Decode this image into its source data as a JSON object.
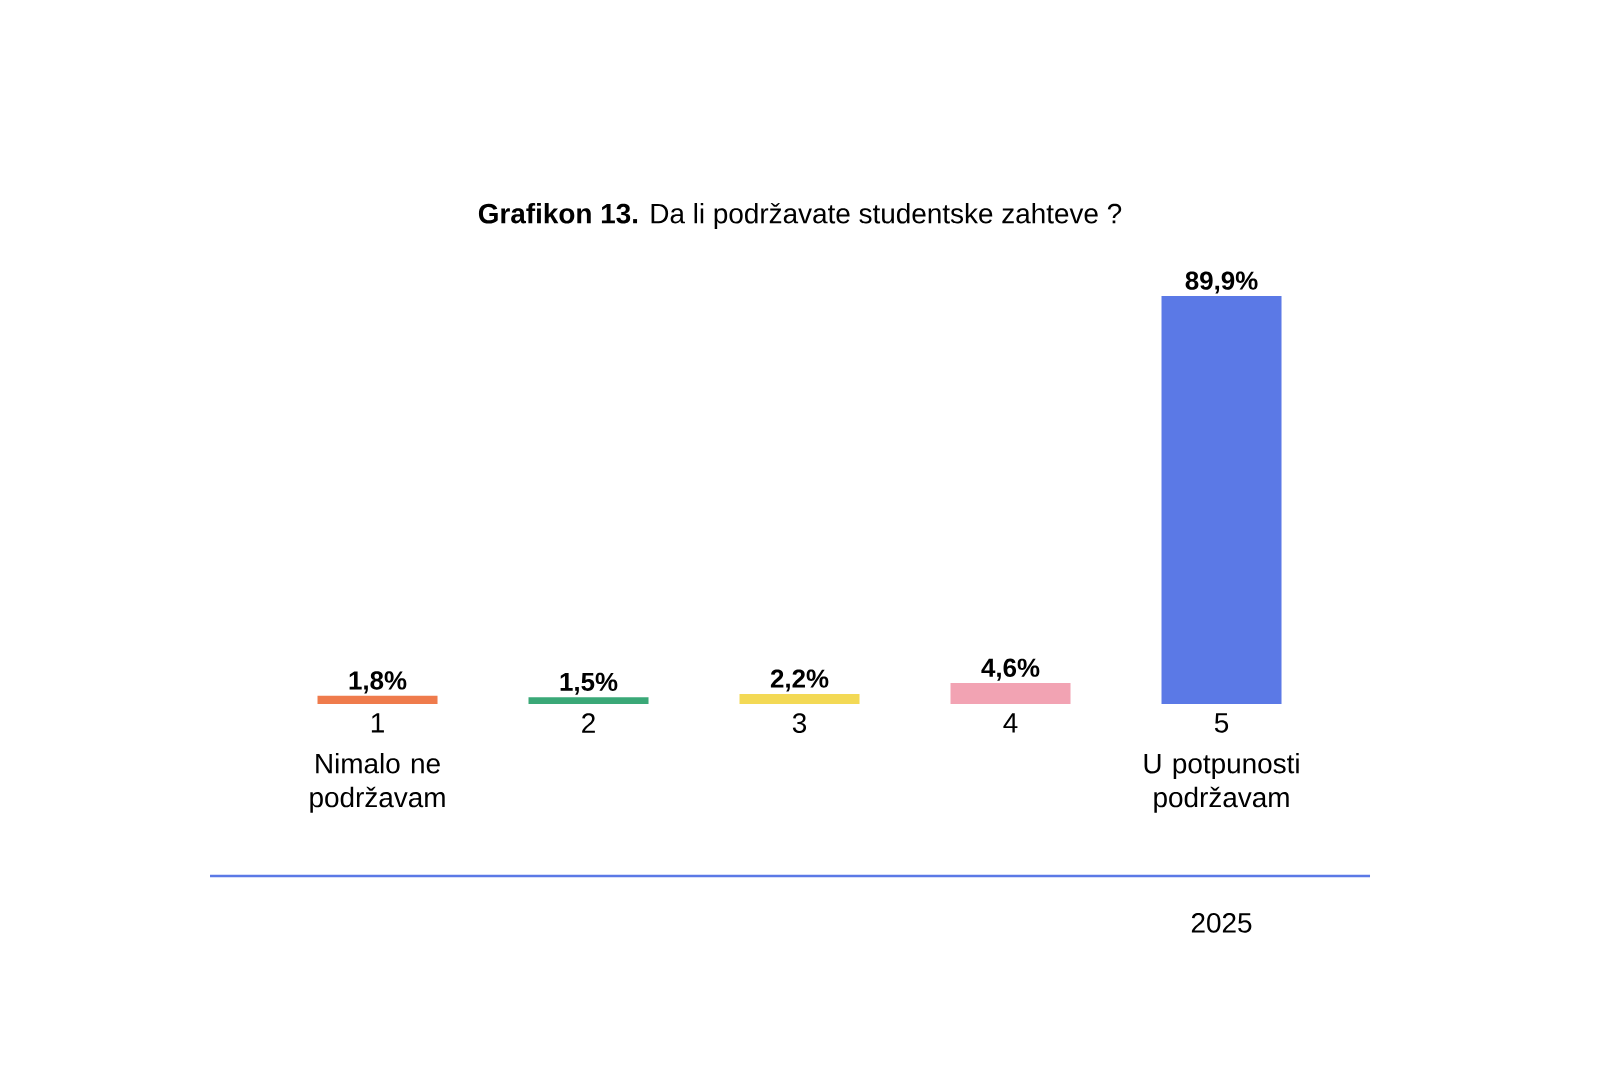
{
  "chart_data": {
    "type": "bar",
    "title": "**Grafikon 13.** Da li podržavate studentske zahteve ?",
    "categories": [
      "1",
      "2",
      "3",
      "4",
      "5"
    ],
    "values": [
      1.8,
      1.5,
      2.2,
      4.6,
      89.9
    ],
    "colors": [
      "#ef7b4c",
      "#3aa877",
      "#f3d955",
      "#f2a3b3",
      "#5b79e6"
    ],
    "value_labels": [
      "1,8%",
      "1,5%",
      "2,2%",
      "4,6%",
      "89,9%"
    ],
    "annotations": [
      "Nimalo ne podržavam",
      "U potpunosti podržavam",
      "2025"
    ]
  }
}
